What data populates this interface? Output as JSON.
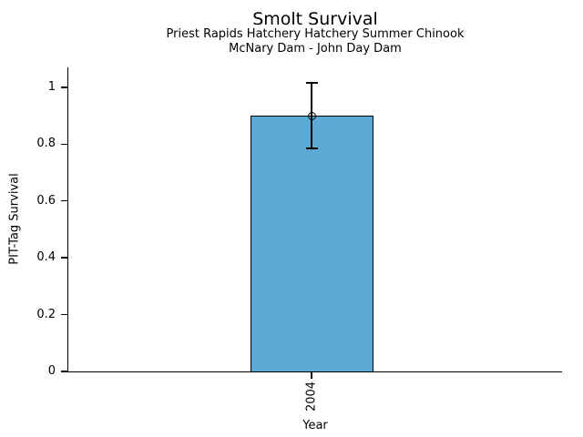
{
  "chart_data": {
    "type": "bar",
    "title": "Smolt Survival",
    "subtitle1": "Priest Rapids Hatchery Hatchery Summer Chinook",
    "subtitle2": "McNary Dam - John Day Dam",
    "xlabel": "Year",
    "ylabel": "PIT-Tag Survival",
    "categories": [
      "2004"
    ],
    "values": [
      0.9
    ],
    "error_low": [
      0.785
    ],
    "error_high": [
      1.015
    ],
    "ylim": [
      0,
      1.07
    ],
    "yticks": [
      0,
      0.2,
      0.4,
      0.6,
      0.8,
      1
    ],
    "ytick_labels": [
      "0",
      "0.2",
      "0.4",
      "0.6",
      "0.8",
      "1"
    ],
    "bar_color": "#5BAAD5",
    "bar_edge_color": "#000000",
    "axis_color": "#000000",
    "text_color": "#000000",
    "marker": "open-circle",
    "grid": false,
    "legend": false
  }
}
